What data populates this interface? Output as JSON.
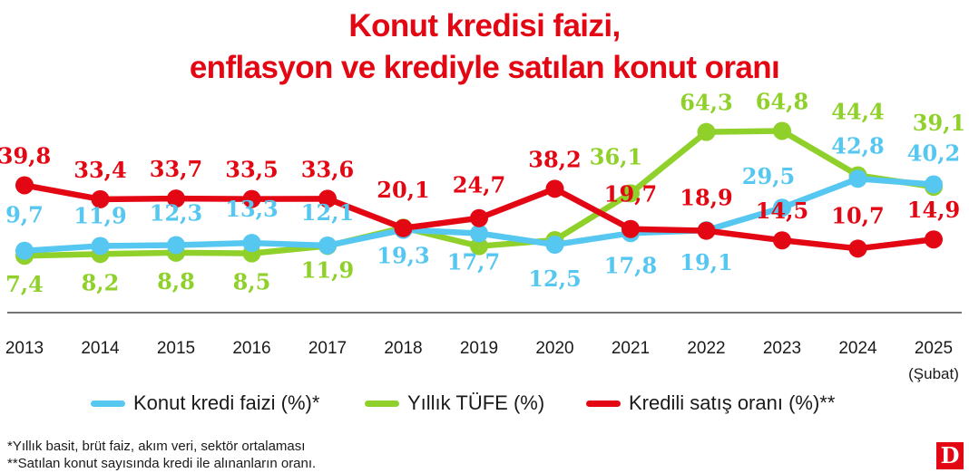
{
  "title_line1": "Konut kredisi faizi,",
  "title_line2": "enflasyon ve krediyle satılan konut oranı",
  "chart_data": {
    "type": "line",
    "categories": [
      "2013",
      "2014",
      "2015",
      "2016",
      "2017",
      "2018",
      "2019",
      "2020",
      "2021",
      "2022",
      "2023",
      "2024",
      "2025"
    ],
    "last_category_note": "(Şubat)",
    "series": [
      {
        "name": "Konut kredi faizi (%)*",
        "color": "#55c7f0",
        "values": [
          9.7,
          11.9,
          12.3,
          13.3,
          12.1,
          19.3,
          17.7,
          12.5,
          17.8,
          19.1,
          29.5,
          42.8,
          40.2
        ],
        "labels": [
          "9,7",
          "11,9",
          "12,3",
          "13,3",
          "12,1",
          "19,3",
          "17,7",
          "12,5",
          "17,8",
          "19,1",
          "29,5",
          "42,8",
          "40,2"
        ]
      },
      {
        "name": "Yıllık TÜFE (%)",
        "color": "#8fd12a",
        "values": [
          7.4,
          8.2,
          8.8,
          8.5,
          11.9,
          20.3,
          11.8,
          14.6,
          36.1,
          64.3,
          64.8,
          44.4,
          39.1
        ],
        "labels": [
          "7,4",
          "8,2",
          "8,8",
          "8,5",
          "11,9",
          "",
          "",
          "",
          "36,1",
          "64,3",
          "64,8",
          "44,4",
          "39,1"
        ]
      },
      {
        "name": "Kredili satış oranı (%)**",
        "color": "#e30613",
        "values": [
          39.8,
          33.4,
          33.7,
          33.5,
          33.6,
          20.1,
          24.7,
          38.2,
          19.7,
          18.9,
          14.5,
          10.7,
          14.9
        ],
        "labels": [
          "39,8",
          "33,4",
          "33,7",
          "33,5",
          "33,6",
          "20,1",
          "24,7",
          "38,2",
          "19,7",
          "18,9",
          "14,5",
          "10,7",
          "14,9"
        ]
      }
    ],
    "xlabel": "",
    "ylabel": "",
    "grid": false,
    "legend_position": "bottom"
  },
  "notes": [
    "*Yıllık basit, brüt faiz, akım veri, sektör ortalaması",
    "**Satılan konut sayısında kredi ile alınanların oranı."
  ],
  "logo_text": "D"
}
